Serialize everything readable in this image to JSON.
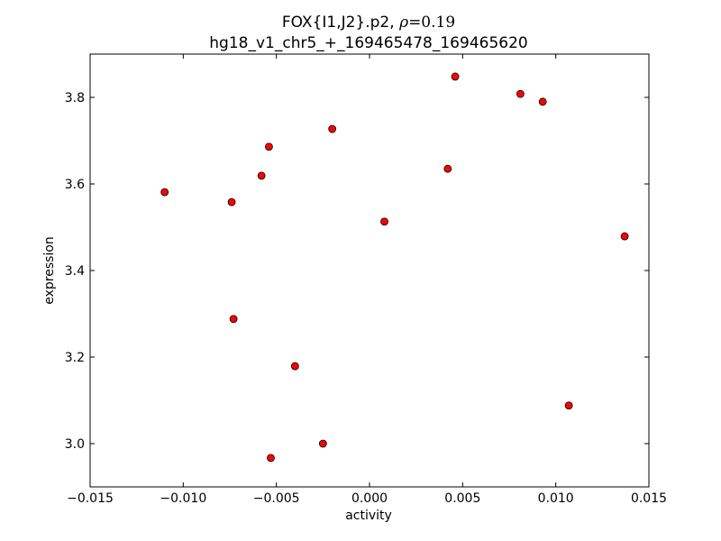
{
  "chart_data": {
    "type": "scatter",
    "title_prefix": "FOX{I1,J2}.p2, ",
    "title_rho_symbol": "ρ",
    "title_rho_value": "=0.19",
    "subtitle": "hg18_v1_chr5_+_169465478_169465620",
    "xlabel": "activity",
    "ylabel": "expression",
    "xlim": [
      -0.015,
      0.015
    ],
    "ylim": [
      2.9,
      3.9
    ],
    "xticks": [
      -0.015,
      -0.01,
      -0.005,
      0.0,
      0.005,
      0.01,
      0.015
    ],
    "xtick_labels": [
      "−0.015",
      "−0.010",
      "−0.005",
      "0.000",
      "0.005",
      "0.010",
      "0.015"
    ],
    "yticks": [
      3.0,
      3.2,
      3.4,
      3.6,
      3.8
    ],
    "ytick_labels": [
      "3.0",
      "3.2",
      "3.4",
      "3.6",
      "3.8"
    ],
    "grid": false,
    "marker_color": "#ff0000",
    "marker_edge": "#000000",
    "points": [
      {
        "x": -0.011,
        "y": 3.581
      },
      {
        "x": -0.0074,
        "y": 3.558
      },
      {
        "x": -0.0073,
        "y": 3.288
      },
      {
        "x": -0.0058,
        "y": 3.619
      },
      {
        "x": -0.0054,
        "y": 3.686
      },
      {
        "x": -0.0053,
        "y": 2.967
      },
      {
        "x": -0.004,
        "y": 3.179
      },
      {
        "x": -0.0025,
        "y": 3.0
      },
      {
        "x": -0.002,
        "y": 3.727
      },
      {
        "x": 0.0008,
        "y": 3.513
      },
      {
        "x": 0.0042,
        "y": 3.635
      },
      {
        "x": 0.0046,
        "y": 3.848
      },
      {
        "x": 0.0081,
        "y": 3.808
      },
      {
        "x": 0.0093,
        "y": 3.79
      },
      {
        "x": 0.0107,
        "y": 3.088
      },
      {
        "x": 0.0137,
        "y": 3.479
      }
    ]
  }
}
